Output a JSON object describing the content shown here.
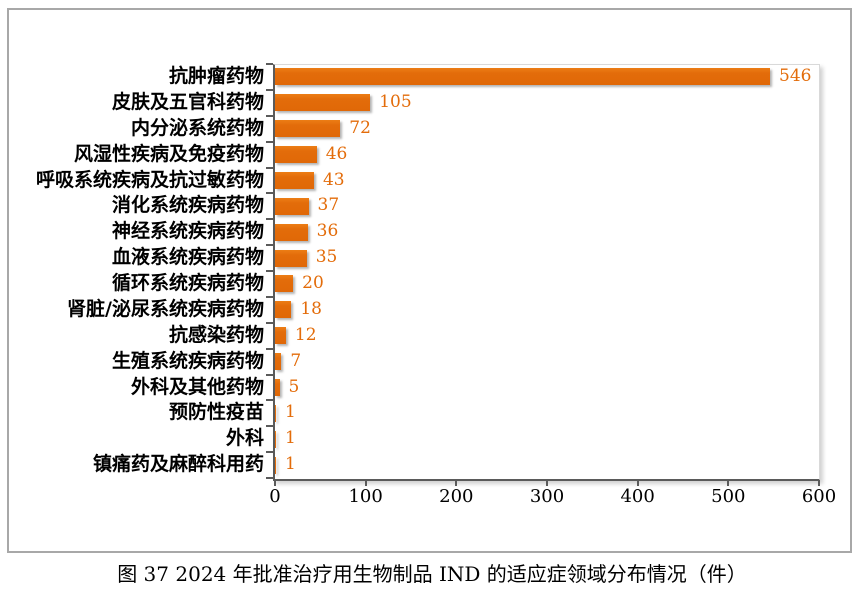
{
  "figure": {
    "caption": "图 37  2024 年批准治疗用生物制品 IND 的适应症领域分布情况（件）"
  },
  "chart_data": {
    "type": "bar",
    "orientation": "horizontal",
    "title": "",
    "categories": [
      "抗肿瘤药物",
      "皮肤及五官科药物",
      "内分泌系统药物",
      "风湿性疾病及免疫药物",
      "呼吸系统疾病及抗过敏药物",
      "消化系统疾病药物",
      "神经系统疾病药物",
      "血液系统疾病药物",
      "循环系统疾病药物",
      "肾脏/泌尿系统疾病药物",
      "抗感染药物",
      "生殖系统疾病药物",
      "外科及其他药物",
      "预防性疫苗",
      "外科",
      "镇痛药及麻醉科用药"
    ],
    "values": [
      546,
      105,
      72,
      46,
      43,
      37,
      36,
      35,
      20,
      18,
      12,
      7,
      5,
      1,
      1,
      1
    ],
    "value_labels": [
      "546",
      "105",
      "72",
      "46",
      "43",
      "37",
      "36",
      "35",
      "20",
      "18",
      "12",
      "7",
      "5",
      "1",
      "1",
      "1"
    ],
    "xlim": [
      0,
      600
    ],
    "x_ticks": [
      0,
      100,
      200,
      300,
      400,
      500,
      600
    ],
    "xlabel": "",
    "ylabel": "",
    "grid": "off",
    "legend": "none",
    "colors": {
      "bar": "#e36c0a",
      "value_label": "#e36c0a",
      "axis": "#5a5a5a",
      "plot_border": "#d9d9d9",
      "chart_border": "#a8a8a8",
      "category_text": "#000000",
      "tick_text": "#000000"
    }
  }
}
